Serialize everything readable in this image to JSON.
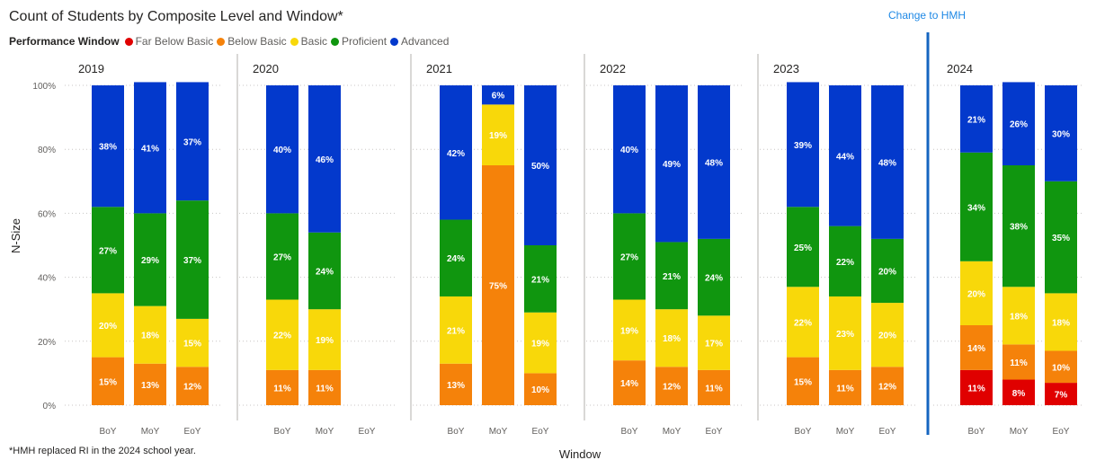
{
  "title": "Count of Students by Composite Level and Window*",
  "change_link": "Change to HMH",
  "footnote": "*HMH replaced RI in the 2024 school year.",
  "legend": {
    "title": "Performance Window",
    "items": [
      {
        "label": "Far Below Basic",
        "color": "#e00000"
      },
      {
        "label": "Below Basic",
        "color": "#f5820a"
      },
      {
        "label": "Basic",
        "color": "#f8d80a"
      },
      {
        "label": "Proficient",
        "color": "#10960f"
      },
      {
        "label": "Advanced",
        "color": "#0339cc"
      }
    ]
  },
  "chart_data": {
    "type": "bar",
    "stacked": true,
    "xlabel": "Window",
    "ylabel": "N-Size",
    "ylim": [
      0,
      100
    ],
    "yticks": [
      "0%",
      "20%",
      "40%",
      "60%",
      "80%",
      "100%"
    ],
    "grid": true,
    "categories": [
      "BoY",
      "MoY",
      "EoY"
    ],
    "panels": [
      {
        "year": "2019",
        "bars": [
          {
            "window": "BoY",
            "far_below_basic": null,
            "below_basic": 15,
            "basic": 20,
            "proficient": 27,
            "advanced": 38
          },
          {
            "window": "MoY",
            "far_below_basic": null,
            "below_basic": 13,
            "basic": 18,
            "proficient": 29,
            "advanced": 41
          },
          {
            "window": "EoY",
            "far_below_basic": null,
            "below_basic": 12,
            "basic": 15,
            "proficient": 37,
            "advanced": 37
          }
        ]
      },
      {
        "year": "2020",
        "bars": [
          {
            "window": "BoY",
            "far_below_basic": null,
            "below_basic": 11,
            "basic": 22,
            "proficient": 27,
            "advanced": 40
          },
          {
            "window": "MoY",
            "far_below_basic": null,
            "below_basic": 11,
            "basic": 19,
            "proficient": 24,
            "advanced": 46
          },
          {
            "window": "EoY",
            "far_below_basic": null,
            "below_basic": null,
            "basic": null,
            "proficient": null,
            "advanced": null
          }
        ]
      },
      {
        "year": "2021",
        "bars": [
          {
            "window": "BoY",
            "far_below_basic": null,
            "below_basic": 13,
            "basic": 21,
            "proficient": 24,
            "advanced": 42
          },
          {
            "window": "MoY",
            "far_below_basic": null,
            "below_basic": 75,
            "basic": 19,
            "proficient": null,
            "advanced": 6
          },
          {
            "window": "EoY",
            "far_below_basic": null,
            "below_basic": 10,
            "basic": 19,
            "proficient": 21,
            "advanced": 50
          }
        ]
      },
      {
        "year": "2022",
        "bars": [
          {
            "window": "BoY",
            "far_below_basic": null,
            "below_basic": 14,
            "basic": 19,
            "proficient": 27,
            "advanced": 40
          },
          {
            "window": "MoY",
            "far_below_basic": null,
            "below_basic": 12,
            "basic": 18,
            "proficient": 21,
            "advanced": 49
          },
          {
            "window": "EoY",
            "far_below_basic": null,
            "below_basic": 11,
            "basic": 17,
            "proficient": 24,
            "advanced": 48
          }
        ]
      },
      {
        "year": "2023",
        "bars": [
          {
            "window": "BoY",
            "far_below_basic": null,
            "below_basic": 15,
            "basic": 22,
            "proficient": 25,
            "advanced": 39
          },
          {
            "window": "MoY",
            "far_below_basic": null,
            "below_basic": 11,
            "basic": 23,
            "proficient": 22,
            "advanced": 44
          },
          {
            "window": "EoY",
            "far_below_basic": null,
            "below_basic": 12,
            "basic": 20,
            "proficient": 20,
            "advanced": 48
          }
        ]
      },
      {
        "year": "2024",
        "bars": [
          {
            "window": "BoY",
            "far_below_basic": 11,
            "below_basic": 14,
            "basic": 20,
            "proficient": 34,
            "advanced": 21
          },
          {
            "window": "MoY",
            "far_below_basic": 8,
            "below_basic": 11,
            "basic": 18,
            "proficient": 38,
            "advanced": 26
          },
          {
            "window": "EoY",
            "far_below_basic": 7,
            "below_basic": 10,
            "basic": 18,
            "proficient": 35,
            "advanced": 30
          }
        ]
      }
    ]
  }
}
